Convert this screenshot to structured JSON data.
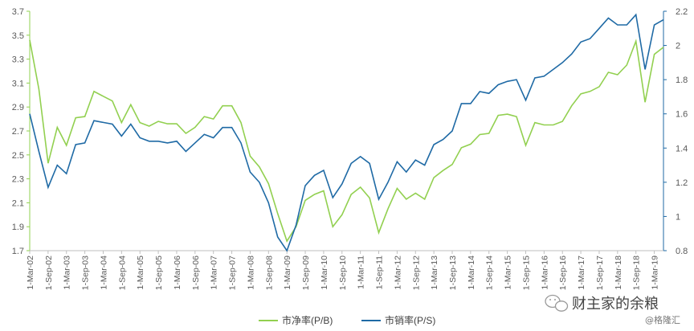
{
  "chart_data": {
    "type": "line",
    "x_tick_labels": [
      "1-Mar-02",
      "1-Sep-02",
      "1-Mar-03",
      "1-Sep-03",
      "1-Mar-04",
      "1-Sep-04",
      "1-Mar-05",
      "1-Sep-05",
      "1-Mar-06",
      "1-Sep-06",
      "1-Mar-07",
      "1-Sep-07",
      "1-Mar-08",
      "1-Sep-08",
      "1-Mar-09",
      "1-Sep-09",
      "1-Mar-10",
      "1-Sep-10",
      "1-Mar-11",
      "1-Sep-11",
      "1-Mar-12",
      "1-Sep-12",
      "1-Mar-13",
      "1-Sep-13",
      "1-Mar-14",
      "1-Sep-14",
      "1-Mar-15",
      "1-Sep-15",
      "1-Mar-16",
      "1-Sep-16",
      "1-Mar-17",
      "1-Sep-17",
      "1-Mar-18",
      "1-Sep-18",
      "1-Mar-19"
    ],
    "y_left": {
      "ylim": [
        1.7,
        3.7
      ],
      "ticks": [
        "1.7",
        "1.9",
        "2.1",
        "2.3",
        "2.5",
        "2.7",
        "2.9",
        "3.1",
        "3.3",
        "3.5",
        "3.7"
      ]
    },
    "y_right": {
      "ylim": [
        0.8,
        2.2
      ],
      "ticks": [
        "0.8",
        "1",
        "1.2",
        "1.4",
        "1.6",
        "1.8",
        "2",
        "2.2"
      ]
    },
    "grid": false,
    "legend_position": "bottom-center",
    "series": [
      {
        "name": "市净率(P/B)",
        "axis": "left",
        "color": "#92d050",
        "values": [
          3.46,
          3.05,
          2.43,
          2.73,
          2.58,
          2.81,
          2.82,
          3.03,
          2.99,
          2.95,
          2.77,
          2.92,
          2.77,
          2.74,
          2.78,
          2.76,
          2.76,
          2.68,
          2.73,
          2.82,
          2.8,
          2.91,
          2.91,
          2.77,
          2.49,
          2.4,
          2.26,
          2.01,
          1.78,
          1.9,
          2.12,
          2.17,
          2.2,
          1.9,
          2.0,
          2.17,
          2.23,
          2.14,
          1.85,
          2.05,
          2.22,
          2.13,
          2.18,
          2.13,
          2.31,
          2.37,
          2.42,
          2.56,
          2.59,
          2.67,
          2.68,
          2.83,
          2.84,
          2.82,
          2.58,
          2.77,
          2.75,
          2.75,
          2.78,
          2.91,
          3.01,
          3.03,
          3.07,
          3.19,
          3.17,
          3.25,
          3.45,
          2.94,
          3.34,
          3.4
        ]
      },
      {
        "name": "市销率(P/S)",
        "axis": "right",
        "color": "#1f6aa5",
        "values": [
          1.6,
          1.38,
          1.17,
          1.3,
          1.25,
          1.42,
          1.43,
          1.56,
          1.55,
          1.54,
          1.47,
          1.54,
          1.46,
          1.44,
          1.44,
          1.43,
          1.44,
          1.38,
          1.43,
          1.48,
          1.46,
          1.52,
          1.52,
          1.43,
          1.26,
          1.2,
          1.08,
          0.88,
          0.8,
          0.95,
          1.18,
          1.24,
          1.27,
          1.11,
          1.19,
          1.31,
          1.35,
          1.31,
          1.1,
          1.2,
          1.32,
          1.26,
          1.33,
          1.3,
          1.42,
          1.45,
          1.5,
          1.66,
          1.66,
          1.73,
          1.72,
          1.77,
          1.79,
          1.8,
          1.68,
          1.81,
          1.82,
          1.86,
          1.9,
          1.95,
          2.02,
          2.04,
          2.1,
          2.16,
          2.12,
          2.12,
          2.18,
          1.86,
          2.12,
          2.15
        ]
      }
    ]
  },
  "watermark": {
    "line1": "财主家的余粮",
    "line2": "@格隆汇"
  }
}
